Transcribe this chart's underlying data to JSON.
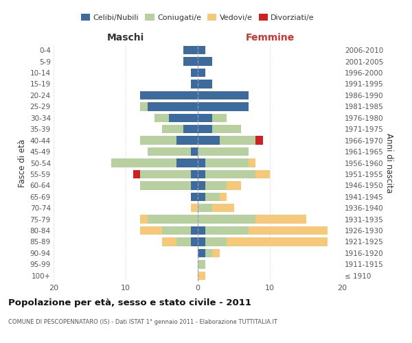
{
  "age_groups": [
    "100+",
    "95-99",
    "90-94",
    "85-89",
    "80-84",
    "75-79",
    "70-74",
    "65-69",
    "60-64",
    "55-59",
    "50-54",
    "45-49",
    "40-44",
    "35-39",
    "30-34",
    "25-29",
    "20-24",
    "15-19",
    "10-14",
    "5-9",
    "0-4"
  ],
  "birth_years": [
    "≤ 1910",
    "1911-1915",
    "1916-1920",
    "1921-1925",
    "1926-1930",
    "1931-1935",
    "1936-1940",
    "1941-1945",
    "1946-1950",
    "1951-1955",
    "1956-1960",
    "1961-1965",
    "1966-1970",
    "1971-1975",
    "1976-1980",
    "1981-1985",
    "1986-1990",
    "1991-1995",
    "1996-2000",
    "2001-2005",
    "2006-2010"
  ],
  "colors": {
    "celibi": "#3d6b9e",
    "coniugati": "#b8cfa0",
    "vedovi": "#f5c87a",
    "divorziati": "#cc2222"
  },
  "maschi": {
    "celibi": [
      0,
      0,
      0,
      1,
      1,
      0,
      0,
      1,
      1,
      1,
      3,
      1,
      3,
      2,
      4,
      7,
      8,
      1,
      1,
      2,
      2
    ],
    "coniugati": [
      0,
      0,
      0,
      2,
      4,
      7,
      0,
      0,
      7,
      7,
      9,
      6,
      5,
      3,
      2,
      1,
      0,
      0,
      0,
      0,
      0
    ],
    "vedovi": [
      0,
      0,
      0,
      2,
      3,
      1,
      1,
      0,
      0,
      0,
      0,
      0,
      0,
      0,
      0,
      0,
      0,
      0,
      0,
      0,
      0
    ],
    "divorziati": [
      0,
      0,
      0,
      0,
      0,
      0,
      0,
      0,
      0,
      1,
      0,
      0,
      0,
      0,
      0,
      0,
      0,
      0,
      0,
      0,
      0
    ]
  },
  "femmine": {
    "celibi": [
      0,
      0,
      1,
      1,
      1,
      0,
      0,
      1,
      1,
      1,
      1,
      0,
      3,
      2,
      2,
      7,
      7,
      2,
      1,
      2,
      1
    ],
    "coniugati": [
      0,
      1,
      1,
      3,
      6,
      8,
      2,
      2,
      3,
      7,
      6,
      7,
      5,
      4,
      2,
      0,
      0,
      0,
      0,
      0,
      0
    ],
    "vedovi": [
      1,
      0,
      1,
      14,
      11,
      7,
      3,
      1,
      2,
      2,
      1,
      0,
      0,
      0,
      0,
      0,
      0,
      0,
      0,
      0,
      0
    ],
    "divorziati": [
      0,
      0,
      0,
      0,
      0,
      0,
      0,
      0,
      0,
      0,
      0,
      0,
      1,
      0,
      0,
      0,
      0,
      0,
      0,
      0,
      0
    ]
  },
  "xlim": 20,
  "title": "Popolazione per età, sesso e stato civile - 2011",
  "subtitle": "COMUNE DI PESCOPENNATARO (IS) - Dati ISTAT 1° gennaio 2011 - Elaborazione TUTTITALIA.IT",
  "ylabel_left": "Fasce di età",
  "ylabel_right": "Anni di nascita",
  "xlabel_left": "Maschi",
  "xlabel_right": "Femmine"
}
